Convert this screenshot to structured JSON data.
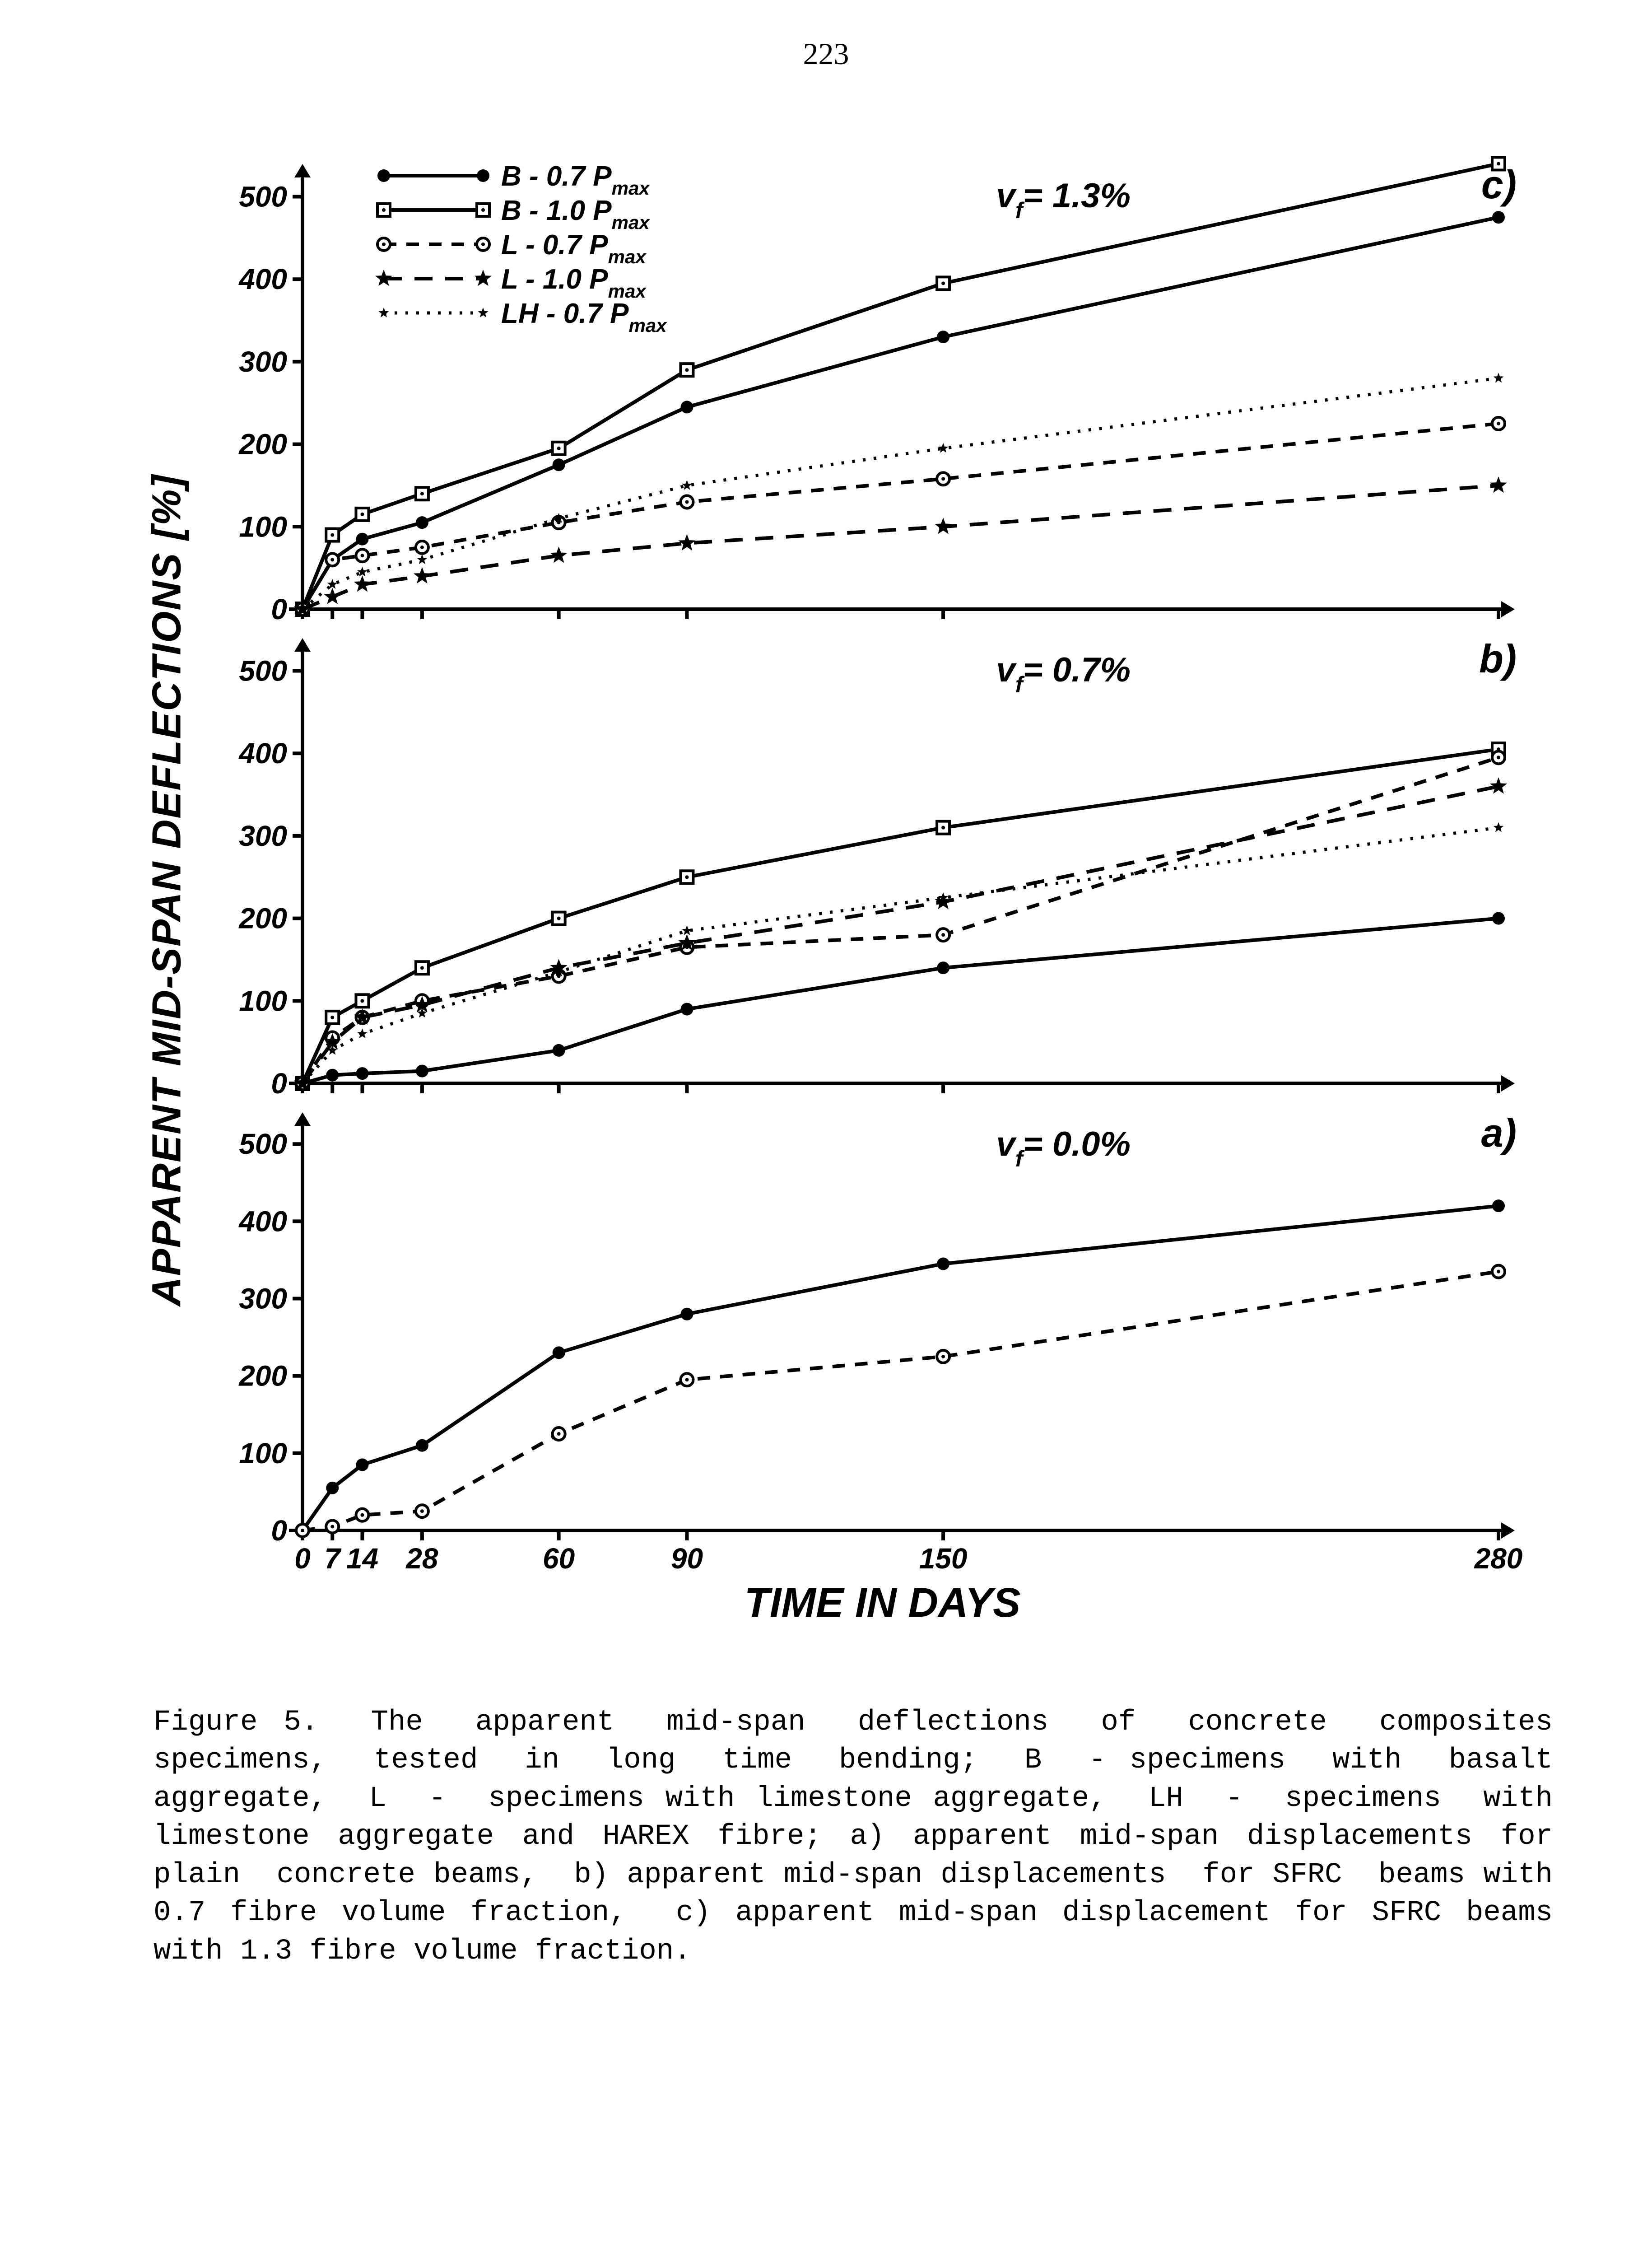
{
  "page_number": "223",
  "axis": {
    "ylabel": "APPARENT MID-SPAN DEFLECTIONS [%]",
    "xlabel": "TIME IN DAYS",
    "x_domain": [
      0,
      280
    ],
    "x_ticks": [
      0,
      7,
      14,
      28,
      60,
      90,
      150,
      280
    ],
    "x_tick_labels": [
      "0",
      "7",
      "14",
      "28",
      "60",
      "90",
      "150",
      "280"
    ],
    "y_domain": [
      0,
      520
    ],
    "y_ticks": [
      0,
      100,
      200,
      300,
      400,
      500
    ],
    "y_tick_labels": [
      "0",
      "100",
      "200",
      "300",
      "400",
      "500"
    ],
    "tick_fontsize": 64,
    "label_fontsize": 92,
    "axis_color": "#000000",
    "axis_width": 8
  },
  "legend": {
    "items": [
      {
        "key": "B07",
        "label": "B  - 0.7 P",
        "sub": "max"
      },
      {
        "key": "B10",
        "label": "B  - 1.0 P",
        "sub": "max"
      },
      {
        "key": "L07",
        "label": "L  - 0.7 P",
        "sub": "max"
      },
      {
        "key": "L10",
        "label": "L  - 1.0 P",
        "sub": "max"
      },
      {
        "key": "LH07",
        "label": "LH - 0.7 P",
        "sub": "max"
      }
    ],
    "fontsize": 62
  },
  "series_style": {
    "B07": {
      "color": "#000000",
      "dash": "",
      "marker": "filled-circle",
      "stroke_width": 8
    },
    "B10": {
      "color": "#000000",
      "dash": "",
      "marker": "open-square",
      "stroke_width": 8
    },
    "L07": {
      "color": "#000000",
      "dash": "28 22",
      "marker": "open-circle",
      "stroke_width": 8
    },
    "L10": {
      "color": "#000000",
      "dash": "40 28",
      "marker": "filled-star",
      "stroke_width": 8
    },
    "LH07": {
      "color": "#000000",
      "dash": "6 18",
      "marker": "filled-star-sm",
      "stroke_width": 7
    }
  },
  "panels": [
    {
      "id": "c",
      "panel_label": "c)",
      "inset_label": "v",
      "inset_sub": "f",
      "inset_after": "= 1.3%",
      "show_legend": true,
      "show_xticks": false,
      "series": {
        "B07": {
          "x": [
            0,
            7,
            14,
            28,
            60,
            90,
            150,
            280
          ],
          "y": [
            0,
            60,
            85,
            105,
            175,
            245,
            330,
            475
          ]
        },
        "B10": {
          "x": [
            0,
            7,
            14,
            28,
            60,
            90,
            150,
            280
          ],
          "y": [
            0,
            90,
            115,
            140,
            195,
            290,
            395,
            540
          ]
        },
        "L07": {
          "x": [
            0,
            7,
            14,
            28,
            60,
            90,
            150,
            280
          ],
          "y": [
            0,
            60,
            65,
            75,
            105,
            130,
            158,
            225
          ]
        },
        "L10": {
          "x": [
            0,
            7,
            14,
            28,
            60,
            90,
            150,
            280
          ],
          "y": [
            0,
            15,
            30,
            40,
            65,
            80,
            100,
            150
          ]
        },
        "LH07": {
          "x": [
            0,
            7,
            14,
            28,
            60,
            90,
            150,
            280
          ],
          "y": [
            0,
            30,
            45,
            60,
            110,
            150,
            195,
            280
          ]
        }
      }
    },
    {
      "id": "b",
      "panel_label": "b)",
      "inset_label": "v",
      "inset_sub": "f",
      "inset_after": "= 0.7%",
      "show_legend": false,
      "show_xticks": false,
      "series": {
        "B07": {
          "x": [
            0,
            7,
            14,
            28,
            60,
            90,
            150,
            280
          ],
          "y": [
            0,
            10,
            12,
            15,
            40,
            90,
            140,
            200
          ]
        },
        "B10": {
          "x": [
            0,
            7,
            14,
            28,
            60,
            90,
            150,
            280
          ],
          "y": [
            0,
            80,
            100,
            140,
            200,
            250,
            310,
            405
          ]
        },
        "L07": {
          "x": [
            0,
            7,
            14,
            28,
            60,
            90,
            150,
            280
          ],
          "y": [
            0,
            55,
            80,
            100,
            130,
            165,
            180,
            395
          ]
        },
        "L10": {
          "x": [
            0,
            7,
            14,
            28,
            60,
            90,
            150,
            280
          ],
          "y": [
            0,
            50,
            80,
            95,
            140,
            170,
            220,
            360
          ]
        },
        "LH07": {
          "x": [
            0,
            7,
            14,
            28,
            60,
            90,
            150,
            280
          ],
          "y": [
            0,
            40,
            60,
            85,
            135,
            185,
            225,
            310
          ]
        }
      }
    },
    {
      "id": "a",
      "panel_label": "a)",
      "inset_label": "v",
      "inset_sub": "f",
      "inset_after": "= 0.0%",
      "show_legend": false,
      "show_xticks": true,
      "series": {
        "B07": {
          "x": [
            0,
            7,
            14,
            28,
            60,
            90,
            150,
            280
          ],
          "y": [
            0,
            55,
            85,
            110,
            230,
            280,
            345,
            420
          ]
        },
        "L07": {
          "x": [
            0,
            7,
            14,
            28,
            60,
            90,
            150,
            280
          ],
          "y": [
            0,
            5,
            20,
            25,
            125,
            195,
            225,
            335
          ]
        }
      }
    }
  ],
  "caption": "Figure 5.  The  apparent  mid-span  deflections  of  concrete  composites specimens,  tested  in  long  time  bending;  B  - specimens  with  basalt aggregate,  L  -  specimens with limestone aggregate,  LH  -  specimens  with limestone aggregate and HAREX fibre; a) apparent mid-span displacements for plain  concrete beams,  b) apparent mid-span displacements  for SFRC  beams with 0.7 fibre volume fraction,  c) apparent mid-span displacement for SFRC beams with 1.3 fibre volume fraction."
}
